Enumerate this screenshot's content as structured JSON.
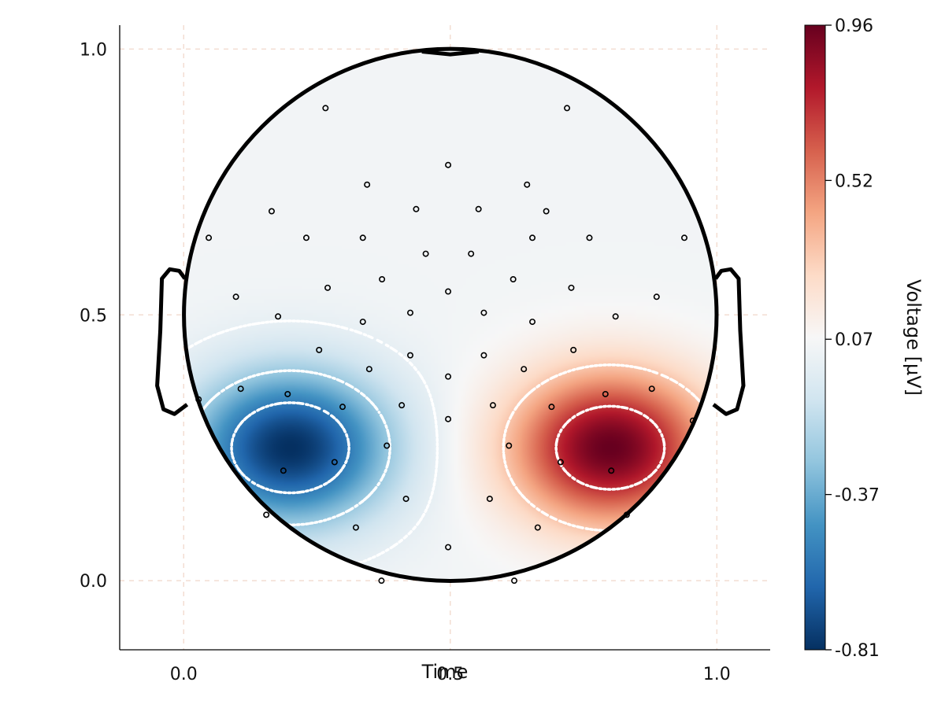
{
  "chart_data": {
    "type": "heatmap",
    "subtype": "eeg-topoplot",
    "title": "",
    "xlabel": "Time",
    "ylabel": "",
    "xlim": [
      -0.12,
      1.1
    ],
    "ylim": [
      -0.13,
      1.045
    ],
    "x_ticks": [
      0.0,
      0.5,
      1.0
    ],
    "x_tick_labels": [
      "0.0",
      "0.5",
      "1.0"
    ],
    "y_ticks": [
      0.0,
      0.5,
      1.0
    ],
    "y_tick_labels": [
      "0.0",
      "0.5",
      "1.0"
    ],
    "grid": true,
    "colormap": "RdBu reversed (blue = negative, red = positive)",
    "colormap_stops": [
      "#053061",
      "#2166ac",
      "#4393c3",
      "#92c5de",
      "#d1e5f0",
      "#f7f7f7",
      "#fddbc7",
      "#f4a582",
      "#d6604d",
      "#b2182b",
      "#67001f"
    ],
    "colorbar": {
      "label": "Voltage [µV]",
      "limits": [
        -0.81,
        0.96
      ],
      "ticks": [
        0.96,
        0.52,
        0.07,
        -0.37,
        -0.81
      ],
      "tick_labels": [
        "0.96",
        "0.52",
        "0.07",
        "-0.37",
        "-0.81"
      ]
    },
    "head": {
      "center": [
        0.5,
        0.5
      ],
      "radius": 0.5
    },
    "sources": [
      {
        "name": "negative-source",
        "x": 0.2,
        "y": 0.25,
        "amplitude": -0.81
      },
      {
        "name": "positive-source",
        "x": 0.8,
        "y": 0.25,
        "amplitude": 0.96
      }
    ],
    "contour_levels": [
      -0.55,
      -0.25,
      0.0,
      0.32,
      0.72
    ],
    "electrodes": [
      [
        0.266,
        0.889
      ],
      [
        0.719,
        0.889
      ],
      [
        0.496,
        0.782
      ],
      [
        0.344,
        0.745
      ],
      [
        0.644,
        0.745
      ],
      [
        0.165,
        0.695
      ],
      [
        0.436,
        0.699
      ],
      [
        0.553,
        0.699
      ],
      [
        0.68,
        0.695
      ],
      [
        0.047,
        0.645
      ],
      [
        0.23,
        0.645
      ],
      [
        0.336,
        0.645
      ],
      [
        0.454,
        0.615
      ],
      [
        0.539,
        0.615
      ],
      [
        0.654,
        0.645
      ],
      [
        0.761,
        0.645
      ],
      [
        0.939,
        0.645
      ],
      [
        0.372,
        0.567
      ],
      [
        0.618,
        0.567
      ],
      [
        0.27,
        0.551
      ],
      [
        0.496,
        0.544
      ],
      [
        0.727,
        0.551
      ],
      [
        0.098,
        0.534
      ],
      [
        0.887,
        0.534
      ],
      [
        0.177,
        0.497
      ],
      [
        0.336,
        0.487
      ],
      [
        0.425,
        0.504
      ],
      [
        0.563,
        0.504
      ],
      [
        0.654,
        0.487
      ],
      [
        0.81,
        0.497
      ],
      [
        0.254,
        0.434
      ],
      [
        0.425,
        0.424
      ],
      [
        0.563,
        0.424
      ],
      [
        0.731,
        0.434
      ],
      [
        0.348,
        0.398
      ],
      [
        0.496,
        0.384
      ],
      [
        0.638,
        0.398
      ],
      [
        0.107,
        0.361
      ],
      [
        0.195,
        0.351
      ],
      [
        0.791,
        0.351
      ],
      [
        0.878,
        0.361
      ],
      [
        0.028,
        0.341
      ],
      [
        0.298,
        0.327
      ],
      [
        0.409,
        0.33
      ],
      [
        0.58,
        0.33
      ],
      [
        0.69,
        0.327
      ],
      [
        0.955,
        0.301
      ],
      [
        0.496,
        0.304
      ],
      [
        0.381,
        0.254
      ],
      [
        0.61,
        0.254
      ],
      [
        0.283,
        0.223
      ],
      [
        0.707,
        0.223
      ],
      [
        0.187,
        0.207
      ],
      [
        0.802,
        0.207
      ],
      [
        0.417,
        0.154
      ],
      [
        0.574,
        0.154
      ],
      [
        0.155,
        0.124
      ],
      [
        0.831,
        0.124
      ],
      [
        0.323,
        0.1
      ],
      [
        0.664,
        0.1
      ],
      [
        0.496,
        0.063
      ],
      [
        0.371,
        0.0
      ],
      [
        0.62,
        0.0
      ]
    ]
  }
}
